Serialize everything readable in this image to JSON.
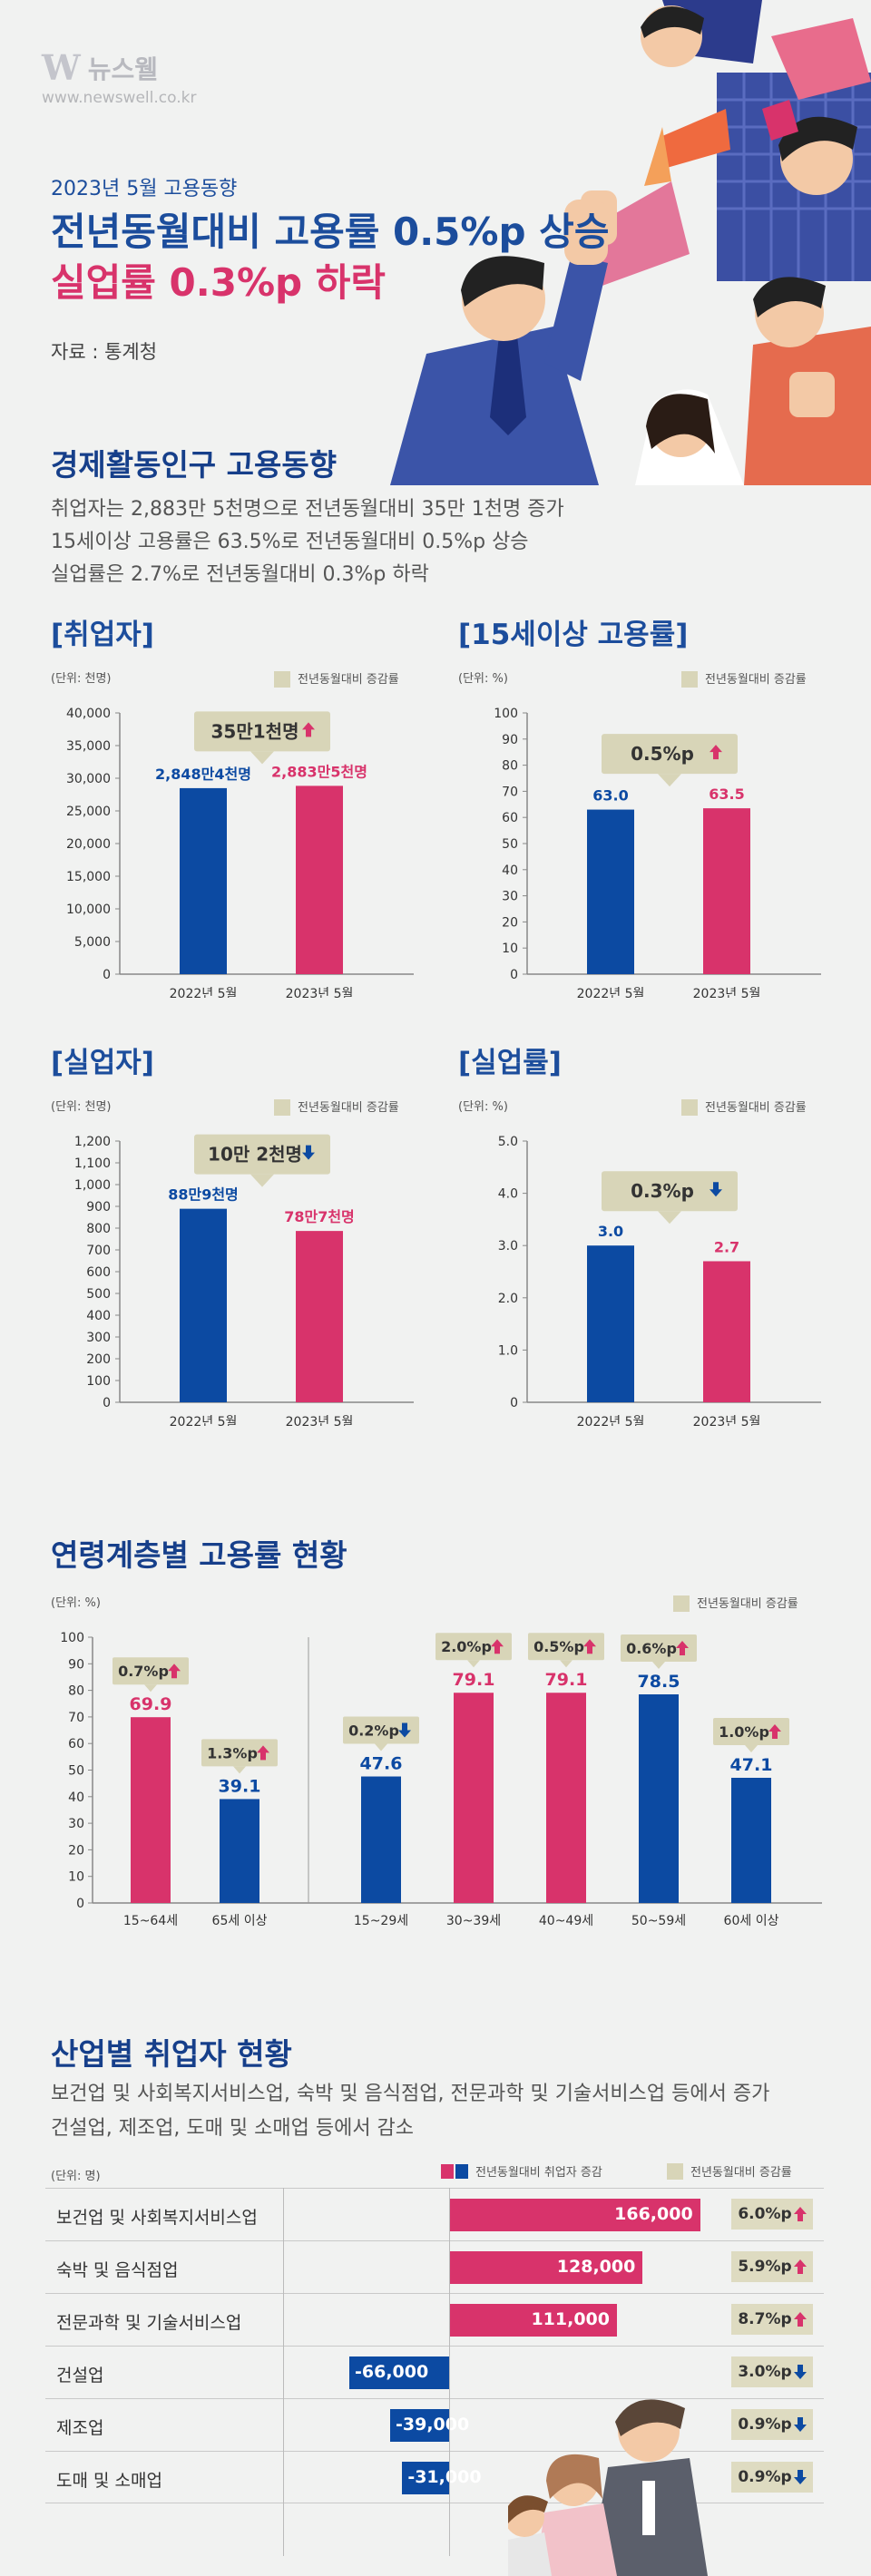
{
  "brand": {
    "name": "뉴스웰",
    "url": "www.newswell.co.kr"
  },
  "header": {
    "eyebrow": "2023년 5월 고용동향",
    "headline_line1": "전년동월대비 고용률 0.5%p 상승",
    "headline_line2": "실업률 0.3%p 하락",
    "source": "자료 : 통계청"
  },
  "colors": {
    "blue": "#0c4aa2",
    "pink": "#d8336b",
    "badge": "#d8d5b8"
  },
  "economy": {
    "title": "경제활동인구 고용동향",
    "lines": [
      "취업자는 2,883만 5천명으로 전년동월대비 35만 1천명 증가",
      "15세이상 고용률은 63.5%로 전년동월대비 0.5%p 상승",
      "실업률은 2.7%로 전년동월대비 0.3%p 하락"
    ]
  },
  "legend_label": "전년동월대비 증감률",
  "chart_data": [
    {
      "id": "employed",
      "type": "bar",
      "title": "[취업자]",
      "unit": "(단위: 천명)",
      "categories": [
        "2022년 5월",
        "2023년 5월"
      ],
      "values": [
        28484,
        28835
      ],
      "labels": [
        "2,848만4천명",
        "2,883만5천명"
      ],
      "ylim": [
        0,
        40000
      ],
      "ticks": [
        "0",
        "5,000",
        "10,000",
        "15,000",
        "20,000",
        "25,000",
        "30,000",
        "35,000",
        "40,000"
      ],
      "badge": "35만1천명",
      "direction": "up"
    },
    {
      "id": "emp_rate",
      "type": "bar",
      "title": "[15세이상 고용률]",
      "unit": "(단위: %)",
      "categories": [
        "2022년 5월",
        "2023년 5월"
      ],
      "values": [
        63.0,
        63.5
      ],
      "labels": [
        "63.0",
        "63.5"
      ],
      "ylim": [
        0,
        100
      ],
      "ticks": [
        "0",
        "10",
        "20",
        "30",
        "40",
        "50",
        "60",
        "70",
        "80",
        "90",
        "100"
      ],
      "badge": "0.5%p",
      "direction": "up"
    },
    {
      "id": "unemployed",
      "type": "bar",
      "title": "[실업자]",
      "unit": "(단위: 천명)",
      "categories": [
        "2022년 5월",
        "2023년 5월"
      ],
      "values": [
        889,
        787
      ],
      "labels": [
        "88만9천명",
        "78만7천명"
      ],
      "ylim": [
        0,
        1200
      ],
      "ticks": [
        "0",
        "100",
        "200",
        "300",
        "400",
        "500",
        "600",
        "700",
        "800",
        "900",
        "1,000",
        "1,100",
        "1,200"
      ],
      "badge": "10만 2천명",
      "direction": "down"
    },
    {
      "id": "unemp_rate",
      "type": "bar",
      "title": "[실업률]",
      "unit": "(단위: %)",
      "categories": [
        "2022년 5월",
        "2023년 5월"
      ],
      "values": [
        3.0,
        2.7
      ],
      "labels": [
        "3.0",
        "2.7"
      ],
      "ylim": [
        0,
        5
      ],
      "ticks": [
        "0",
        "1.0",
        "2.0",
        "3.0",
        "4.0",
        "5.0"
      ],
      "badge": "0.3%p",
      "direction": "down"
    },
    {
      "id": "age",
      "type": "bar",
      "title": "연령계층별 고용률 현황",
      "unit": "(단위: %)",
      "categories": [
        "15~64세",
        "65세 이상",
        "15~29세",
        "30~39세",
        "40~49세",
        "50~59세",
        "60세 이상"
      ],
      "values": [
        69.9,
        39.1,
        47.6,
        79.1,
        79.1,
        78.5,
        47.1
      ],
      "labels": [
        "69.9",
        "39.1",
        "47.6",
        "79.1",
        "79.1",
        "78.5",
        "47.1"
      ],
      "colors": [
        "pink",
        "blue",
        "blue",
        "pink",
        "pink",
        "blue",
        "blue"
      ],
      "badges": [
        "0.7%p",
        "1.3%p",
        "0.2%p",
        "2.0%p",
        "0.5%p",
        "0.6%p",
        "1.0%p"
      ],
      "directions": [
        "up",
        "up",
        "down",
        "up",
        "up",
        "up",
        "up"
      ],
      "ylim": [
        0,
        100
      ],
      "ticks": [
        "0",
        "10",
        "20",
        "30",
        "40",
        "50",
        "60",
        "70",
        "80",
        "90",
        "100"
      ]
    },
    {
      "id": "industry",
      "type": "bar",
      "orientation": "horizontal",
      "title": "산업별 취업자 현황",
      "unit": "(단위: 명)",
      "legend_change": "전년동월대비 취업자 증감",
      "legend_rate": "전년동월대비 증감률",
      "categories": [
        "보건업 및 사회복지서비스업",
        "숙박 및 음식점업",
        "전문과학 및 기술서비스업",
        "건설업",
        "제조업",
        "도매 및 소매업"
      ],
      "values": [
        166000,
        128000,
        111000,
        -66000,
        -39000,
        -31000
      ],
      "labels": [
        "166,000",
        "128,000",
        "111,000",
        "-66,000",
        "-39,000",
        "-31,000"
      ],
      "rates": [
        "6.0%p",
        "5.9%p",
        "8.7%p",
        "3.0%p",
        "0.9%p",
        "0.9%p"
      ],
      "directions": [
        "up",
        "up",
        "up",
        "down",
        "down",
        "down"
      ]
    }
  ],
  "industry_desc": [
    "보건업 및 사회복지서비스업, 숙박 및 음식점업, 전문과학 및 기술서비스업 등에서 증가",
    "건설업, 제조업, 도매 및 소매업 등에서 감소"
  ]
}
